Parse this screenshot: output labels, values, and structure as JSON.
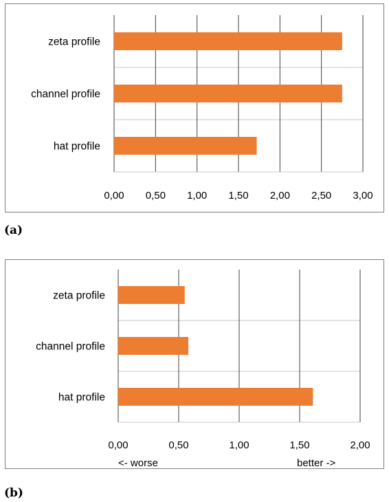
{
  "chart_data": [
    {
      "type": "bar",
      "orientation": "horizontal",
      "panel_label": "(a)",
      "categories": [
        "zeta profile",
        "channel profile",
        "hat profile"
      ],
      "values": [
        2.75,
        2.75,
        1.72
      ],
      "xlim": [
        0,
        3
      ],
      "xticks": [
        "0,00",
        "0,50",
        "1,00",
        "1,50",
        "2,00",
        "2,50",
        "3,00"
      ],
      "grid": true,
      "bar_color": "#ED7D31",
      "annotations": []
    },
    {
      "type": "bar",
      "orientation": "horizontal",
      "panel_label": "(b)",
      "categories": [
        "zeta profile",
        "channel profile",
        "hat profile"
      ],
      "values": [
        0.55,
        0.58,
        1.61
      ],
      "xlim": [
        0,
        2
      ],
      "xticks": [
        "0,00",
        "0,50",
        "1,00",
        "1,50",
        "2,00"
      ],
      "grid": true,
      "bar_color": "#ED7D31",
      "annotations": [
        "<- worse",
        "better ->"
      ]
    }
  ]
}
